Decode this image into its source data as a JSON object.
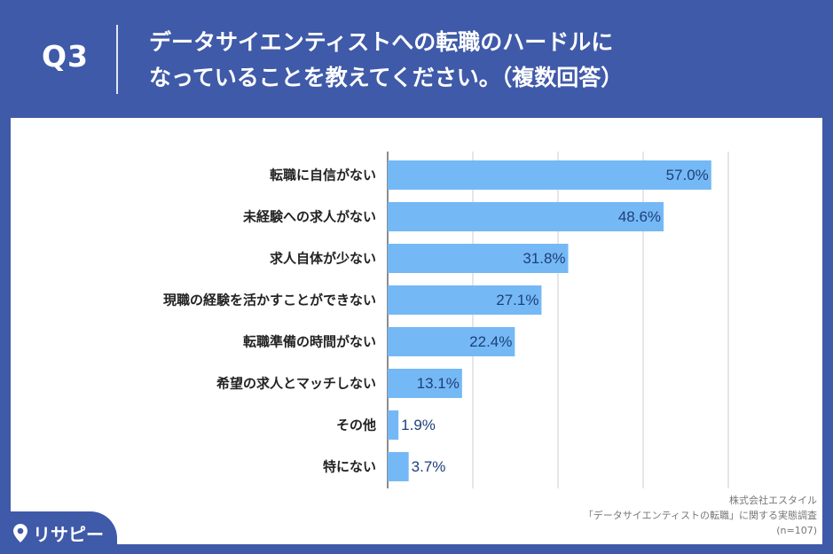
{
  "header": {
    "question_number": "Q3",
    "title_line1": "データサイエンティストへの転職のハードルに",
    "title_line2": "なっていることを教えてください。（複数回答）"
  },
  "source": {
    "line1": "株式会社エスタイル",
    "line2": "「データサイエンティストの転職」に関する実態調査",
    "line3": "(n=107)"
  },
  "logo": {
    "text": "リサピー",
    "icon": "pin-icon"
  },
  "colors": {
    "background": "#3f5aa8",
    "bar": "#74b9f5",
    "value_text": "#1f3f7a",
    "grid": "#cccccc"
  },
  "chart_data": {
    "type": "bar",
    "orientation": "horizontal",
    "categories": [
      "転職に自信がない",
      "未経験への求人がない",
      "求人自体が少ない",
      "現職の経験を活かすことができない",
      "転職準備の時間がない",
      "希望の求人とマッチしない",
      "その他",
      "特にない"
    ],
    "values": [
      57.0,
      48.6,
      31.8,
      27.1,
      22.4,
      13.1,
      1.9,
      3.7
    ],
    "value_labels": [
      "57.0%",
      "48.6%",
      "31.8%",
      "27.1%",
      "22.4%",
      "13.1%",
      "1.9%",
      "3.7%"
    ],
    "xlim": [
      0,
      60
    ],
    "grid_step": 15,
    "grid": true,
    "legend": "none"
  }
}
